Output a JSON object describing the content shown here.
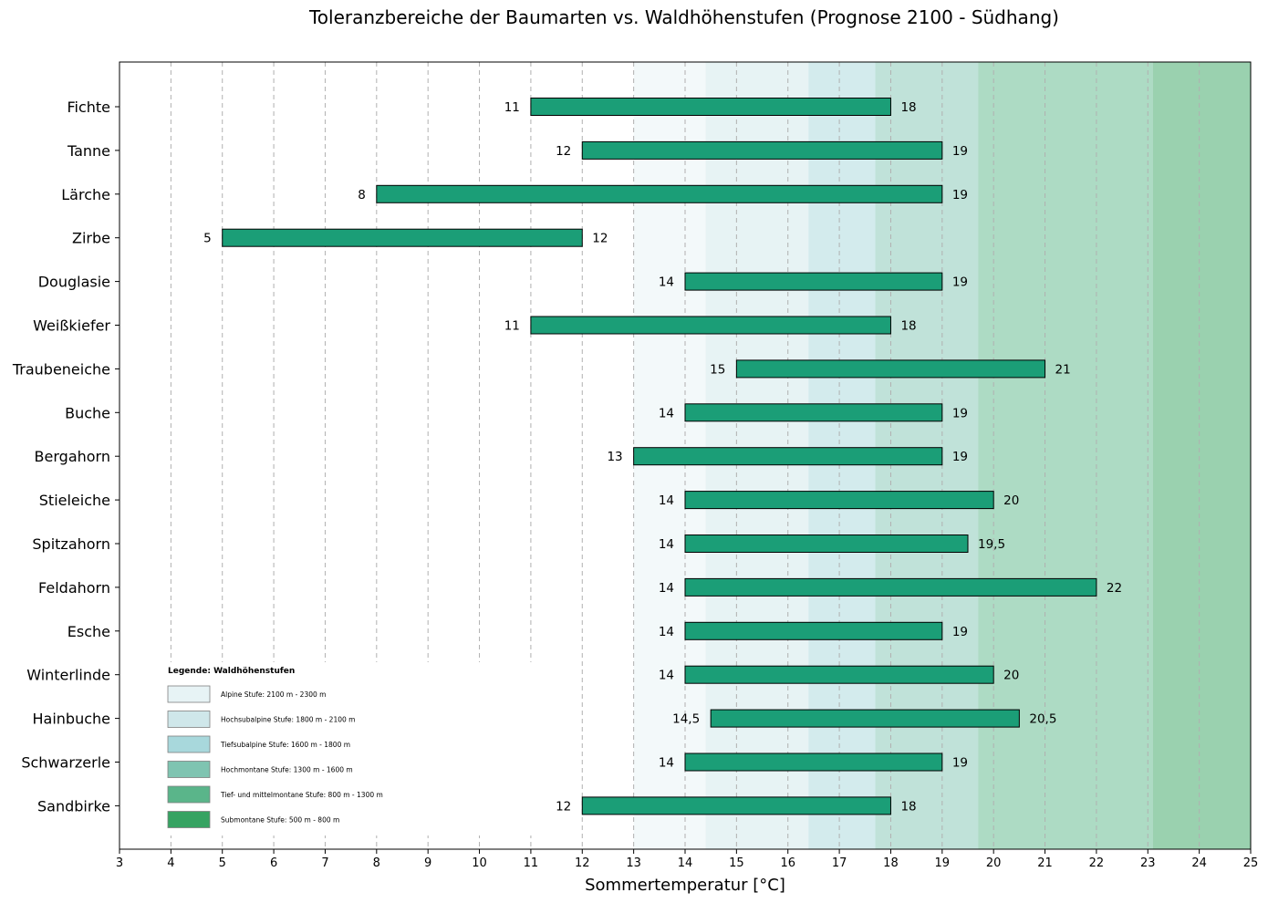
{
  "chart_data": {
    "type": "bar",
    "orientation": "horizontal-range",
    "title": "Toleranzbereiche der Baumarten vs. Waldhöhenstufen (Prognose 2100 - Südhang)",
    "xlabel": "Sommertemperatur [°C]",
    "ylabel": "",
    "xlim": [
      3,
      25
    ],
    "xticks": [
      3,
      4,
      5,
      6,
      7,
      8,
      9,
      10,
      11,
      12,
      13,
      14,
      15,
      16,
      17,
      18,
      19,
      20,
      21,
      22,
      23,
      24,
      25
    ],
    "grid": "vertical-dashed",
    "bar_color": "#1b9e77",
    "species": [
      {
        "name": "Fichte",
        "min": 11,
        "max": 18,
        "min_label": "11",
        "max_label": "18"
      },
      {
        "name": "Tanne",
        "min": 12,
        "max": 19,
        "min_label": "12",
        "max_label": "19"
      },
      {
        "name": "Lärche",
        "min": 8,
        "max": 19,
        "min_label": "8",
        "max_label": "19"
      },
      {
        "name": "Zirbe",
        "min": 5,
        "max": 12,
        "min_label": "5",
        "max_label": "12"
      },
      {
        "name": "Douglasie",
        "min": 14,
        "max": 19,
        "min_label": "14",
        "max_label": "19"
      },
      {
        "name": "Weißkiefer",
        "min": 11,
        "max": 18,
        "min_label": "11",
        "max_label": "18"
      },
      {
        "name": "Traubeneiche",
        "min": 15,
        "max": 21,
        "min_label": "15",
        "max_label": "21"
      },
      {
        "name": "Buche",
        "min": 14,
        "max": 19,
        "min_label": "14",
        "max_label": "19"
      },
      {
        "name": "Bergahorn",
        "min": 13,
        "max": 19,
        "min_label": "13",
        "max_label": "19"
      },
      {
        "name": "Stieleiche",
        "min": 14,
        "max": 20,
        "min_label": "14",
        "max_label": "20"
      },
      {
        "name": "Spitzahorn",
        "min": 14,
        "max": 19.5,
        "min_label": "14",
        "max_label": "19,5"
      },
      {
        "name": "Feldahorn",
        "min": 14,
        "max": 22,
        "min_label": "14",
        "max_label": "22"
      },
      {
        "name": "Esche",
        "min": 14,
        "max": 19,
        "min_label": "14",
        "max_label": "19"
      },
      {
        "name": "Winterlinde",
        "min": 14,
        "max": 20,
        "min_label": "14",
        "max_label": "20"
      },
      {
        "name": "Hainbuche",
        "min": 14.5,
        "max": 20.5,
        "min_label": "14,5",
        "max_label": "20,5"
      },
      {
        "name": "Schwarzerle",
        "min": 14,
        "max": 19,
        "min_label": "14",
        "max_label": "19"
      },
      {
        "name": "Sandbirke",
        "min": 12,
        "max": 18,
        "min_label": "12",
        "max_label": "18"
      }
    ],
    "zones": [
      {
        "from": 13.0,
        "to": 14.4,
        "color": "#e7f3f5",
        "opacity": 0.5
      },
      {
        "from": 14.4,
        "to": 16.4,
        "color": "#cfe7ea",
        "opacity": 0.5
      },
      {
        "from": 16.4,
        "to": 17.7,
        "color": "#a8d8dc",
        "opacity": 0.5
      },
      {
        "from": 17.7,
        "to": 19.7,
        "color": "#82c6b4",
        "opacity": 0.5
      },
      {
        "from": 19.7,
        "to": 23.1,
        "color": "#5cb88a",
        "opacity": 0.5
      },
      {
        "from": 23.1,
        "to": 25.0,
        "color": "#36a35f",
        "opacity": 0.5
      }
    ],
    "legend": {
      "title": "Legende: Waldhöhenstufen",
      "placement": "lower-left",
      "items": [
        {
          "label": "Alpine Stufe: 2100 m - 2300 m",
          "color": "#e7f3f5"
        },
        {
          "label": "Hochsubalpine Stufe: 1800 m - 2100 m",
          "color": "#cfe7ea"
        },
        {
          "label": "Tiefsubalpine Stufe: 1600 m - 1800 m",
          "color": "#a8d8dc"
        },
        {
          "label": "Hochmontane Stufe: 1300 m - 1600 m",
          "color": "#7fc4b1"
        },
        {
          "label": "Tief- und mittelmontane Stufe: 800 m - 1300 m",
          "color": "#5ab58a"
        },
        {
          "label": "Submontane Stufe: 500 m - 800 m",
          "color": "#36a362"
        }
      ]
    }
  }
}
